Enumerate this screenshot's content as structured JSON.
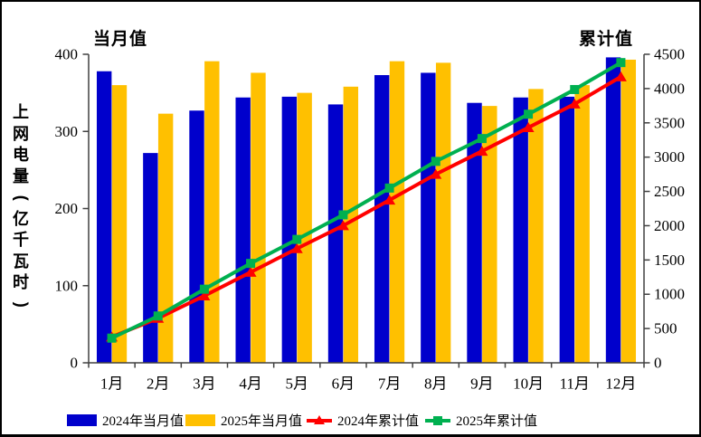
{
  "page": {
    "background": "#FFFFFF",
    "border_color": "#000000",
    "axis_color": "#404040",
    "text_color": "#000000"
  },
  "chart_data": {
    "type": "combo-bar-line",
    "title": "",
    "y_axis_label": "上网电量(亿千瓦时)",
    "left_axis": {
      "title": "当月值",
      "min": 0,
      "max": 400,
      "step": 100,
      "ticks": [
        "0",
        "100",
        "200",
        "300",
        "400"
      ]
    },
    "right_axis": {
      "title": "累计值",
      "min": 0,
      "max": 4500,
      "step": 500,
      "ticks": [
        "0",
        "500",
        "1000",
        "1500",
        "2000",
        "2500",
        "3000",
        "3500",
        "4000",
        "4500"
      ]
    },
    "categories": [
      "1月",
      "2月",
      "3月",
      "4月",
      "5月",
      "6月",
      "7月",
      "8月",
      "9月",
      "10月",
      "11月",
      "12月"
    ],
    "series": [
      {
        "name": "2024年当月值",
        "type": "bar",
        "axis": "left",
        "color": "#0000CC",
        "values": [
          378,
          272,
          327,
          344,
          345,
          335,
          373,
          376,
          337,
          344,
          345,
          396
        ]
      },
      {
        "name": "2025年当月值",
        "type": "bar",
        "axis": "left",
        "color": "#FFC000",
        "values": [
          360,
          323,
          391,
          376,
          350,
          358,
          391,
          389,
          333,
          355,
          360,
          393
        ]
      },
      {
        "name": "2024年累计值",
        "type": "line",
        "axis": "right",
        "color": "#FF0000",
        "marker": "triangle",
        "values": [
          378,
          650,
          977,
          1321,
          1666,
          2001,
          2374,
          2750,
          3087,
          3431,
          3776,
          4172
        ]
      },
      {
        "name": "2025年累计值",
        "type": "line",
        "axis": "right",
        "color": "#00B050",
        "marker": "square",
        "values": [
          360,
          683,
          1074,
          1450,
          1800,
          2158,
          2549,
          2938,
          3271,
          3626,
          3986,
          4379
        ]
      }
    ],
    "legend_position": "bottom",
    "grid": false
  }
}
